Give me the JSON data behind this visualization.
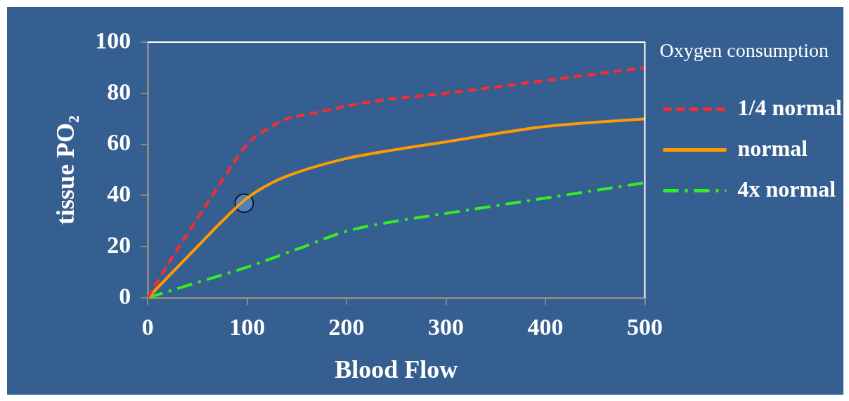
{
  "chart_data": {
    "type": "line",
    "xlabel": "Blood Flow",
    "ylabel": "tissue PO₂",
    "legend_title": "Oxygen consumption",
    "legend": "right",
    "grid": false,
    "marker": "none",
    "xlim": [
      0,
      500
    ],
    "xticks": [
      0,
      100,
      200,
      300,
      400,
      500
    ],
    "ylim": [
      0,
      100
    ],
    "yticks": [
      0,
      20,
      40,
      60,
      80,
      100
    ],
    "series": [
      {
        "name": "1/4 normal",
        "color": "#ff2a2a",
        "line_style": "dashed",
        "x": [
          0,
          25,
          50,
          75,
          100,
          120,
          140,
          170,
          200,
          250,
          300,
          400,
          500
        ],
        "values": [
          0,
          16,
          31,
          46,
          60,
          66,
          70,
          72.5,
          75,
          78,
          80,
          85,
          90
        ]
      },
      {
        "name": "normal",
        "color": "#ff9a00",
        "line_style": "solid",
        "x": [
          0,
          25,
          50,
          75,
          100,
          125,
          150,
          200,
          250,
          300,
          400,
          500
        ],
        "values": [
          0,
          10,
          20,
          30,
          39,
          45,
          49,
          54.5,
          58,
          61,
          67,
          70
        ]
      },
      {
        "name": "4x normal",
        "color": "#33ee22",
        "line_style": "dashdot",
        "x": [
          0,
          50,
          100,
          150,
          200,
          250,
          300,
          400,
          500
        ],
        "values": [
          0,
          6,
          12,
          19,
          26,
          30,
          33,
          39,
          45
        ]
      },
      {
        "type": "scatter",
        "color": "#4f81bd",
        "marker": "circle",
        "x": [
          97
        ],
        "values": [
          37
        ]
      }
    ]
  }
}
